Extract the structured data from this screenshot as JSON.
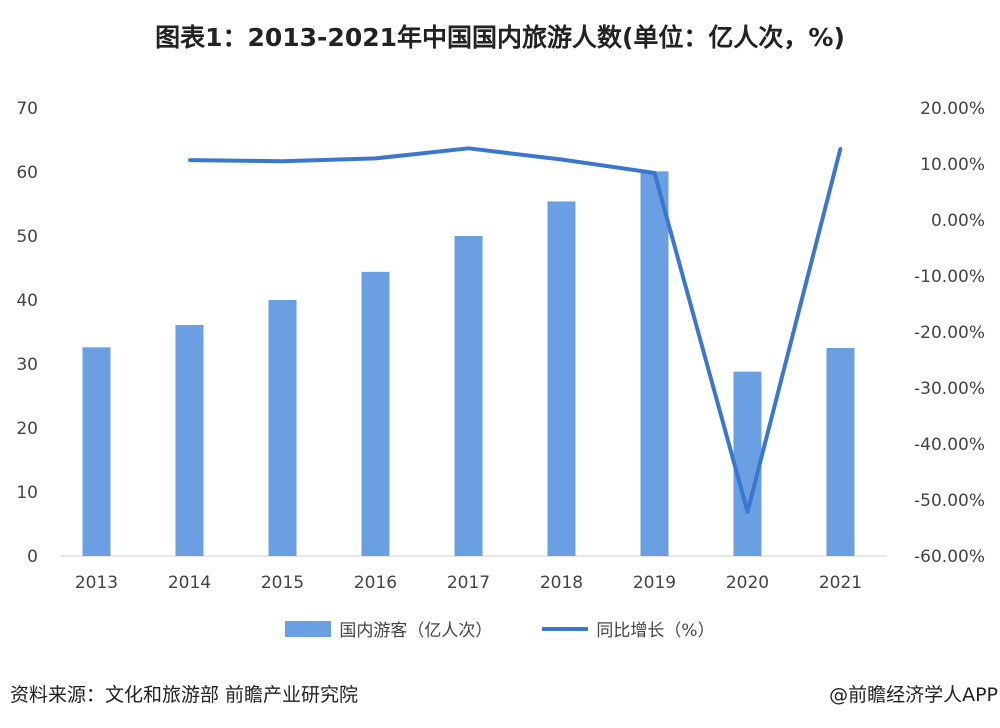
{
  "chart_data": {
    "type": "bar+line",
    "title": "图表1：2013-2021年中国国内旅游人数(单位：亿人次，%)",
    "categories": [
      "2013",
      "2014",
      "2015",
      "2016",
      "2017",
      "2018",
      "2019",
      "2020",
      "2021"
    ],
    "series": [
      {
        "name": "国内游客（亿人次）",
        "type": "bar",
        "axis": "left",
        "color": "#6a9fe3",
        "values": [
          32.6,
          36.1,
          40.0,
          44.4,
          50.0,
          55.4,
          60.1,
          28.8,
          32.5
        ]
      },
      {
        "name": "同比增长（%）",
        "type": "line",
        "axis": "right",
        "color": "#3a78d0",
        "values": [
          null,
          10.7,
          10.5,
          11.0,
          12.8,
          10.8,
          8.4,
          -52.1,
          12.8
        ]
      }
    ],
    "left_axis": {
      "ylim": [
        0,
        70
      ],
      "ticks": [
        "0",
        "10",
        "20",
        "30",
        "40",
        "50",
        "60",
        "70"
      ]
    },
    "right_axis": {
      "ylim": [
        -60,
        20
      ],
      "ticks": [
        "-60.00%",
        "-50.00%",
        "-40.00%",
        "-30.00%",
        "-20.00%",
        "-10.00%",
        "0.00%",
        "10.00%",
        "20.00%"
      ]
    },
    "legend_position": "bottom",
    "grid": false
  },
  "footer": {
    "source": "资料来源：文化和旅游部 前瞻产业研究院",
    "credit": "@前瞻经济学人APP"
  }
}
